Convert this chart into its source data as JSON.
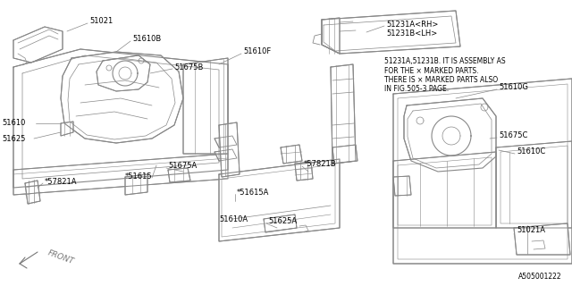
{
  "bg_color": "#ffffff",
  "line_color": "#888888",
  "text_color": "#000000",
  "fig_code": "A505001222",
  "note_line1": "51231A,51231B. IT IS ASSEMBLY AS",
  "note_line2": "FOR THE × MARKED PARTS.",
  "note_line3": "THERE IS × MARKED PARTS ALSO",
  "note_line4": "IN FIG.505-3 PAGE.",
  "front_label": "FRONT"
}
